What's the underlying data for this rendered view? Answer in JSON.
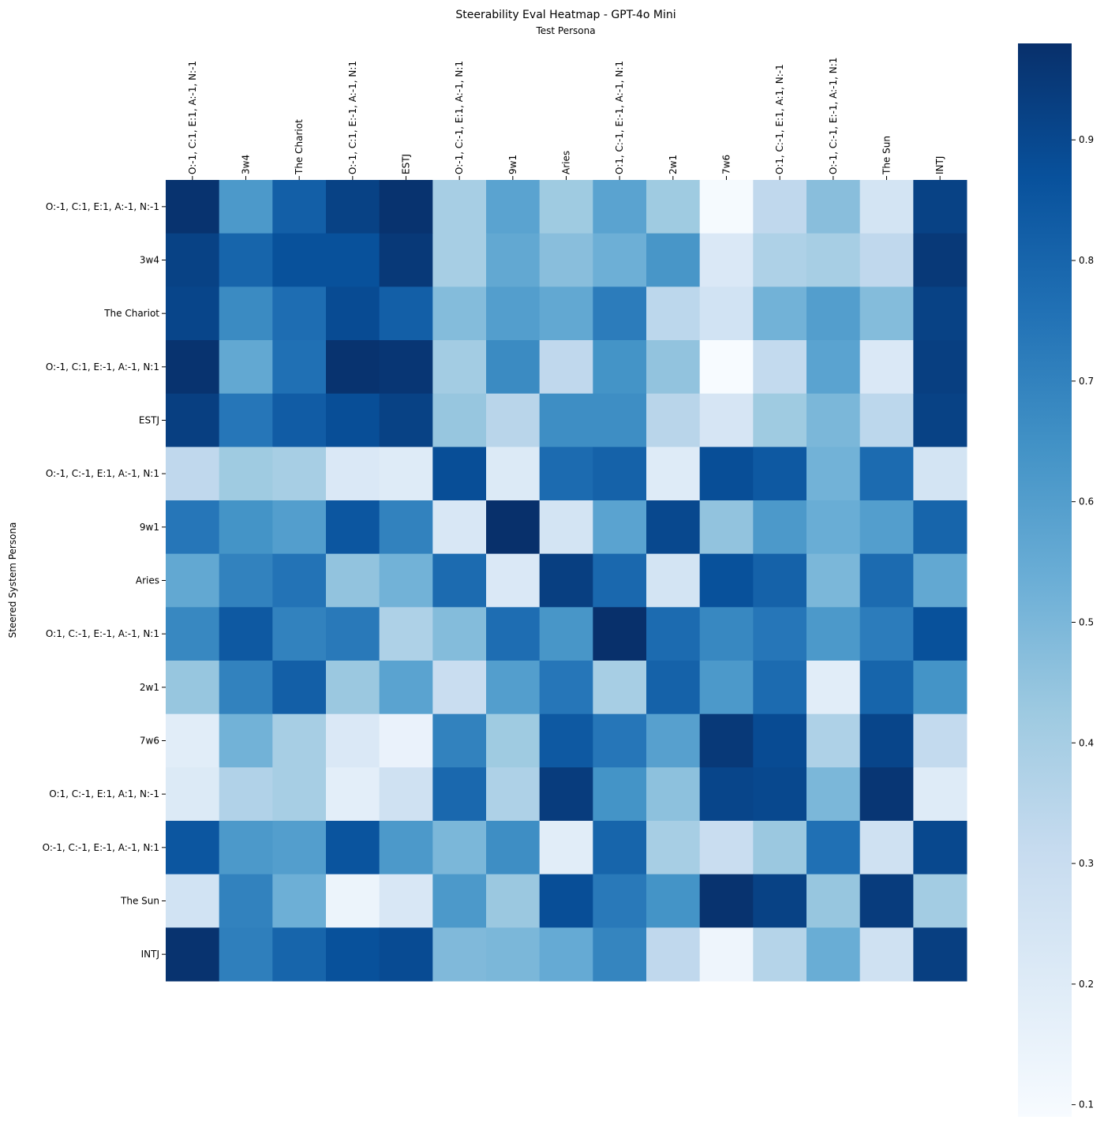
{
  "chart_data": {
    "type": "heatmap",
    "title": "Steerability Eval Heatmap - GPT-4o Mini",
    "xlabel": "Test Persona",
    "ylabel": "Steered System Persona",
    "x_position": "top",
    "colormap": "Blues",
    "colors": [
      "#f7fbff",
      "#deebf7",
      "#c6dbef",
      "#9ecae1",
      "#6baed6",
      "#4292c6",
      "#2171b5",
      "#08519c",
      "#08306b"
    ],
    "color_range": [
      0.09,
      0.98
    ],
    "colorbar_ticks": [
      "0.1",
      "0.2",
      "0.3",
      "0.4",
      "0.5",
      "0.6",
      "0.7",
      "0.8",
      "0.9"
    ],
    "x_categories": [
      "O:-1, C:1, E:1, A:-1, N:-1",
      "3w4",
      "The Chariot",
      "O:-1, C:1, E:-1, A:-1, N:1",
      "ESTJ",
      "O:-1, C:-1, E:1, A:-1, N:1",
      "9w1",
      "Aries",
      "O:1, C:-1, E:-1, A:-1, N:1",
      "2w1",
      "7w6",
      "O:1, C:-1, E:1, A:1, N:-1",
      "O:-1, C:-1, E:-1, A:-1, N:1",
      "The Sun",
      "INTJ"
    ],
    "y_categories": [
      "O:-1, C:1, E:1, A:-1, N:-1",
      "3w4",
      "The Chariot",
      "O:-1, C:1, E:-1, A:-1, N:1",
      "ESTJ",
      "O:-1, C:-1, E:1, A:-1, N:1",
      "9w1",
      "Aries",
      "O:1, C:-1, E:-1, A:-1, N:1",
      "2w1",
      "7w6",
      "O:1, C:-1, E:1, A:1, N:-1",
      "O:-1, C:-1, E:-1, A:-1, N:1",
      "The Sun",
      "INTJ"
    ],
    "values": [
      [
        0.97,
        0.62,
        0.82,
        0.92,
        0.97,
        0.4,
        0.58,
        0.42,
        0.58,
        0.42,
        0.1,
        0.33,
        0.47,
        0.25,
        0.92
      ],
      [
        0.92,
        0.8,
        0.87,
        0.87,
        0.95,
        0.4,
        0.56,
        0.47,
        0.53,
        0.63,
        0.22,
        0.38,
        0.4,
        0.33,
        0.95
      ],
      [
        0.91,
        0.67,
        0.77,
        0.89,
        0.82,
        0.48,
        0.6,
        0.56,
        0.72,
        0.34,
        0.26,
        0.52,
        0.6,
        0.48,
        0.92
      ],
      [
        0.97,
        0.56,
        0.76,
        0.97,
        0.96,
        0.41,
        0.67,
        0.33,
        0.64,
        0.45,
        0.09,
        0.32,
        0.58,
        0.22,
        0.93
      ],
      [
        0.93,
        0.74,
        0.83,
        0.88,
        0.92,
        0.44,
        0.35,
        0.66,
        0.66,
        0.35,
        0.24,
        0.42,
        0.5,
        0.34,
        0.92
      ],
      [
        0.33,
        0.42,
        0.4,
        0.22,
        0.2,
        0.88,
        0.21,
        0.78,
        0.81,
        0.2,
        0.88,
        0.84,
        0.52,
        0.78,
        0.25
      ],
      [
        0.74,
        0.64,
        0.6,
        0.85,
        0.7,
        0.23,
        0.98,
        0.25,
        0.58,
        0.9,
        0.45,
        0.62,
        0.54,
        0.6,
        0.8
      ],
      [
        0.56,
        0.7,
        0.75,
        0.45,
        0.52,
        0.78,
        0.22,
        0.93,
        0.79,
        0.25,
        0.87,
        0.81,
        0.5,
        0.78,
        0.56
      ],
      [
        0.68,
        0.84,
        0.7,
        0.73,
        0.38,
        0.48,
        0.77,
        0.63,
        0.98,
        0.78,
        0.68,
        0.74,
        0.62,
        0.72,
        0.87
      ],
      [
        0.44,
        0.7,
        0.82,
        0.43,
        0.58,
        0.3,
        0.6,
        0.74,
        0.4,
        0.81,
        0.62,
        0.78,
        0.19,
        0.8,
        0.64
      ],
      [
        0.19,
        0.52,
        0.4,
        0.22,
        0.15,
        0.7,
        0.42,
        0.84,
        0.74,
        0.59,
        0.95,
        0.89,
        0.38,
        0.91,
        0.32
      ],
      [
        0.21,
        0.37,
        0.4,
        0.18,
        0.27,
        0.79,
        0.38,
        0.94,
        0.64,
        0.46,
        0.91,
        0.9,
        0.5,
        0.96,
        0.2
      ],
      [
        0.85,
        0.62,
        0.6,
        0.86,
        0.62,
        0.5,
        0.66,
        0.19,
        0.8,
        0.4,
        0.3,
        0.43,
        0.76,
        0.27,
        0.9
      ],
      [
        0.26,
        0.7,
        0.53,
        0.14,
        0.23,
        0.62,
        0.43,
        0.88,
        0.73,
        0.64,
        0.97,
        0.92,
        0.44,
        0.94,
        0.41
      ],
      [
        0.97,
        0.71,
        0.8,
        0.87,
        0.89,
        0.49,
        0.5,
        0.55,
        0.69,
        0.33,
        0.13,
        0.36,
        0.54,
        0.27,
        0.93
      ]
    ]
  }
}
